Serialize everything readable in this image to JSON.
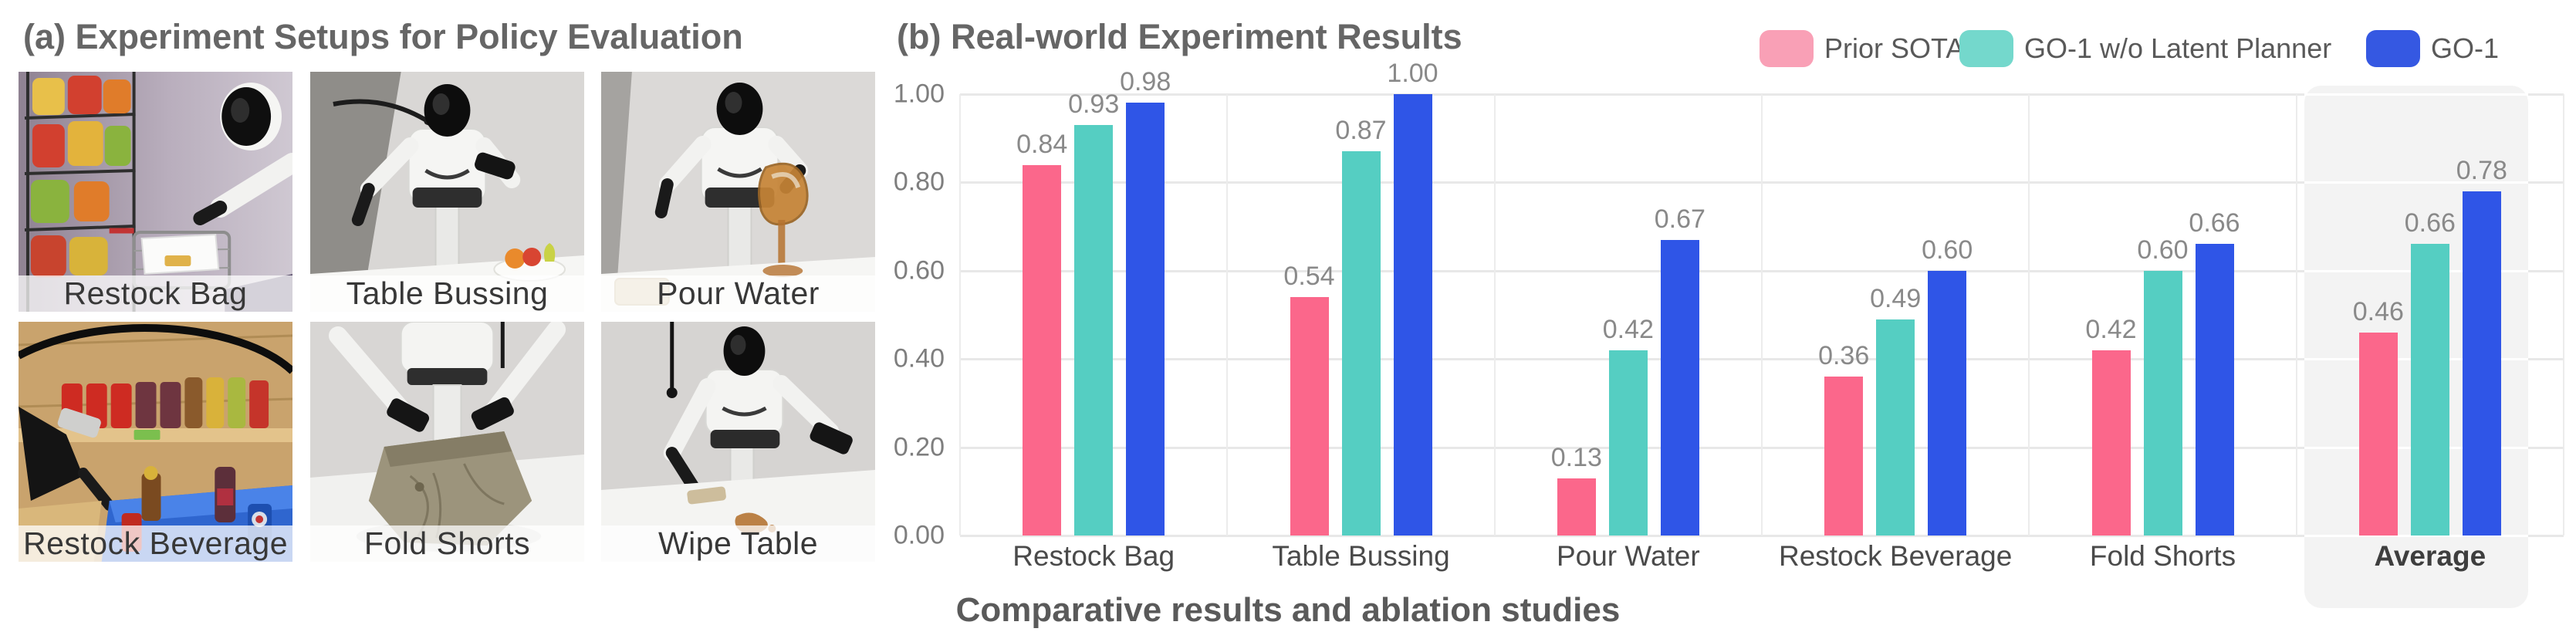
{
  "figure": {
    "panel_a": {
      "title": "(a) Experiment Setups for Policy Evaluation",
      "photos": [
        {
          "label": "Restock Bag"
        },
        {
          "label": "Table Bussing"
        },
        {
          "label": "Pour Water"
        },
        {
          "label": "Restock Beverage"
        },
        {
          "label": "Fold Shorts"
        },
        {
          "label": "Wipe Table"
        }
      ]
    },
    "panel_b": {
      "title": "(b) Real-world Experiment Results",
      "caption": "Comparative results and ablation studies"
    }
  },
  "chart_data": {
    "type": "bar",
    "title": "(b) Real-world Experiment Results",
    "categories": [
      "Restock Bag",
      "Table Bussing",
      "Pour Water",
      "Restock Beverage",
      "Fold Shorts",
      "Average"
    ],
    "series": [
      {
        "name": "Prior SOTA",
        "color": "#FB678B",
        "legend_color": "#F9A0B6",
        "values": [
          0.84,
          0.54,
          0.13,
          0.36,
          0.42,
          0.46
        ]
      },
      {
        "name": "GO-1 w/o Latent Planner",
        "color": "#55CEC2",
        "legend_color": "#74D8CC",
        "values": [
          0.93,
          0.87,
          0.42,
          0.49,
          0.6,
          0.66
        ]
      },
      {
        "name": "GO-1",
        "color": "#2F55E7",
        "legend_color": "#3558E2",
        "values": [
          0.98,
          1.0,
          0.67,
          0.6,
          0.66,
          0.78
        ]
      }
    ],
    "value_labels": true,
    "ylim": [
      0,
      1.0
    ],
    "yticks": [
      0.0,
      0.2,
      0.4,
      0.6,
      0.8,
      1.0
    ],
    "ytick_labels": [
      "0.00",
      "0.20",
      "0.40",
      "0.60",
      "0.80",
      "1.00"
    ],
    "grid": true,
    "legend_position": "top-right",
    "highlighted_category": "Average",
    "highlight_color": "#F3F3F3",
    "xlabel": "",
    "ylabel": ""
  }
}
